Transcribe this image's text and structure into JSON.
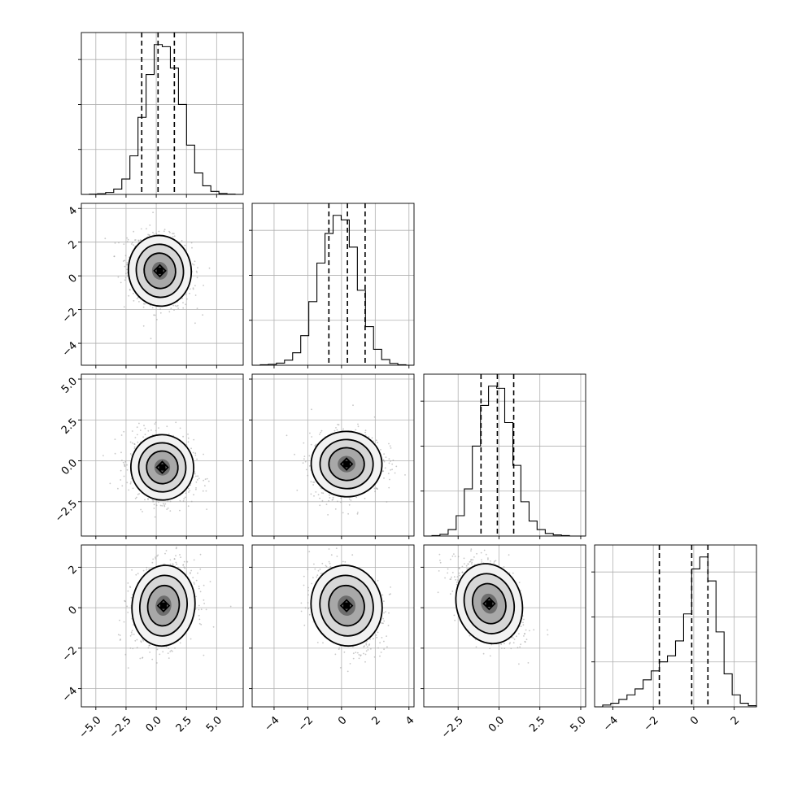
{
  "chart_data": {
    "type": "corner",
    "grid": true,
    "quantiles": [
      0.16,
      0.5,
      0.84
    ],
    "params": [
      {
        "index": 0,
        "range": [
          -6.2,
          7.2
        ],
        "ticks": [
          -5.0,
          -2.5,
          0.0,
          2.5,
          5.0
        ],
        "tick_labels": [
          "−5.0",
          "−2.5",
          "0.0",
          "2.5",
          "5.0"
        ],
        "mean": 0.15,
        "sigma": 1.3,
        "quantile_values": [
          -1.2,
          0.15,
          1.5
        ]
      },
      {
        "index": 1,
        "range": [
          -5.3,
          4.3
        ],
        "ticks": [
          -4,
          -2,
          0,
          2,
          4
        ],
        "tick_labels": [
          "−4",
          "−2",
          "0",
          "2",
          "4"
        ],
        "mean": 0.35,
        "sigma": 1.05,
        "quantile_values": [
          -0.75,
          0.35,
          1.4
        ]
      },
      {
        "index": 2,
        "range": [
          -4.6,
          5.3
        ],
        "ticks": [
          -2.5,
          0.0,
          2.5,
          5.0
        ],
        "tick_labels": [
          "−2.5",
          "0.0",
          "2.5",
          "5.0"
        ],
        "y_tick_labels": [
          "−2.5",
          "0.0",
          "2.5",
          "5.0"
        ],
        "mean": -0.1,
        "sigma": 1.0,
        "quantile_values": [
          -1.1,
          -0.1,
          0.9
        ]
      },
      {
        "index": 3,
        "range": [
          -4.9,
          3.1
        ],
        "ticks": [
          -4,
          -2,
          0,
          2
        ],
        "tick_labels": [
          "−4",
          "−2",
          "0",
          "2"
        ],
        "mean": -0.15,
        "sigma": 1.0,
        "quantile_values": [
          -1.7,
          -0.1,
          0.7
        ]
      }
    ],
    "histograms": [
      {
        "param": 0,
        "bin_edges": [
          -6.2,
          -5.53,
          -4.86,
          -4.19,
          -3.52,
          -2.85,
          -2.18,
          -1.51,
          -0.84,
          -0.17,
          0.5,
          1.17,
          1.84,
          2.51,
          3.18,
          3.85,
          4.52,
          5.19,
          5.86,
          6.53,
          7.2
        ],
        "counts": [
          0,
          1,
          3,
          9,
          25,
          72,
          180,
          360,
          560,
          700,
          690,
          590,
          420,
          230,
          100,
          40,
          14,
          4,
          1,
          0
        ]
      },
      {
        "param": 1,
        "bin_edges": [
          -5.3,
          -4.82,
          -4.34,
          -3.86,
          -3.38,
          -2.9,
          -2.42,
          -1.94,
          -1.46,
          -0.98,
          -0.5,
          -0.02,
          0.46,
          0.94,
          1.42,
          1.9,
          2.38,
          2.86,
          3.34,
          3.82,
          4.3
        ],
        "counts": [
          0,
          2,
          4,
          9,
          22,
          55,
          130,
          280,
          450,
          580,
          660,
          640,
          520,
          330,
          170,
          70,
          25,
          8,
          2,
          0
        ]
      },
      {
        "param": 2,
        "bin_edges": [
          -4.6,
          -4.1,
          -3.61,
          -3.11,
          -2.62,
          -2.12,
          -1.63,
          -1.13,
          -0.64,
          -0.14,
          0.35,
          0.85,
          1.34,
          1.84,
          2.33,
          2.83,
          3.32,
          3.82,
          4.31,
          4.81,
          5.3
        ],
        "counts": [
          0,
          2,
          8,
          30,
          95,
          220,
          420,
          610,
          700,
          690,
          530,
          330,
          160,
          70,
          30,
          12,
          5,
          2,
          0,
          0
        ]
      },
      {
        "param": 3,
        "bin_edges": [
          -4.9,
          -4.5,
          -4.1,
          -3.7,
          -3.3,
          -2.9,
          -2.5,
          -2.1,
          -1.7,
          -1.3,
          -0.9,
          -0.5,
          -0.1,
          0.3,
          0.7,
          1.1,
          1.5,
          1.9,
          2.3,
          2.7,
          3.1
        ],
        "counts": [
          0,
          6,
          12,
          25,
          40,
          60,
          90,
          120,
          150,
          170,
          220,
          310,
          460,
          500,
          420,
          250,
          110,
          40,
          12,
          4
        ]
      }
    ],
    "pairs": [
      {
        "x_param": 0,
        "y_param": 1,
        "center": [
          0.3,
          0.3
        ],
        "rho": -0.2
      },
      {
        "x_param": 0,
        "y_param": 2,
        "center": [
          0.5,
          -0.4
        ],
        "rho": -0.15
      },
      {
        "x_param": 1,
        "y_param": 2,
        "center": [
          0.3,
          -0.2
        ],
        "rho": 0.1
      },
      {
        "x_param": 0,
        "y_param": 3,
        "center": [
          0.6,
          0.1
        ],
        "rho": 0.2
      },
      {
        "x_param": 1,
        "y_param": 3,
        "center": [
          0.3,
          0.1
        ],
        "rho": -0.3
      },
      {
        "x_param": 2,
        "y_param": 3,
        "center": [
          -0.6,
          0.2
        ],
        "rho": -0.45
      }
    ]
  }
}
